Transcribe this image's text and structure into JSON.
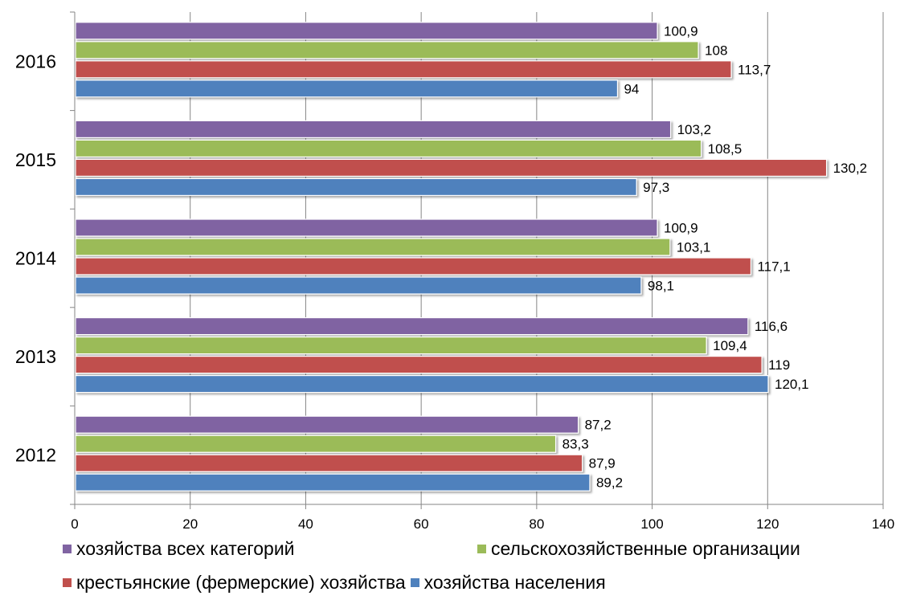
{
  "chart_data": {
    "type": "bar",
    "orientation": "horizontal",
    "categories": [
      "2012",
      "2013",
      "2014",
      "2015",
      "2016"
    ],
    "series": [
      {
        "name": "хозяйства всех категорий",
        "color": "#8064a2",
        "values": [
          87.2,
          116.6,
          100.9,
          103.2,
          100.9
        ],
        "labels": [
          "87,2",
          "116,6",
          "100,9",
          "103,2",
          "100,9"
        ]
      },
      {
        "name": "сельскохозяйственные организации",
        "color": "#9bbb59",
        "values": [
          83.3,
          109.4,
          103.1,
          108.5,
          108
        ],
        "labels": [
          "83,3",
          "109,4",
          "103,1",
          "108,5",
          "108"
        ]
      },
      {
        "name": "крестьянские (фермерские) хозяйства",
        "color": "#c0504d",
        "values": [
          87.9,
          119,
          117.1,
          130.2,
          113.7
        ],
        "labels": [
          "87,9",
          "119",
          "117,1",
          "130,2",
          "113,7"
        ]
      },
      {
        "name": "хозяйства населения",
        "color": "#4f81bd",
        "values": [
          89.2,
          120.1,
          98.1,
          97.3,
          94
        ],
        "labels": [
          "89,2",
          "120,1",
          "98,1",
          "97,3",
          "94"
        ]
      }
    ],
    "xlim": [
      0,
      140
    ],
    "x_ticks": [
      "0",
      "20",
      "40",
      "60",
      "80",
      "100",
      "120",
      "140"
    ],
    "grid": true,
    "legend_position": "bottom"
  }
}
